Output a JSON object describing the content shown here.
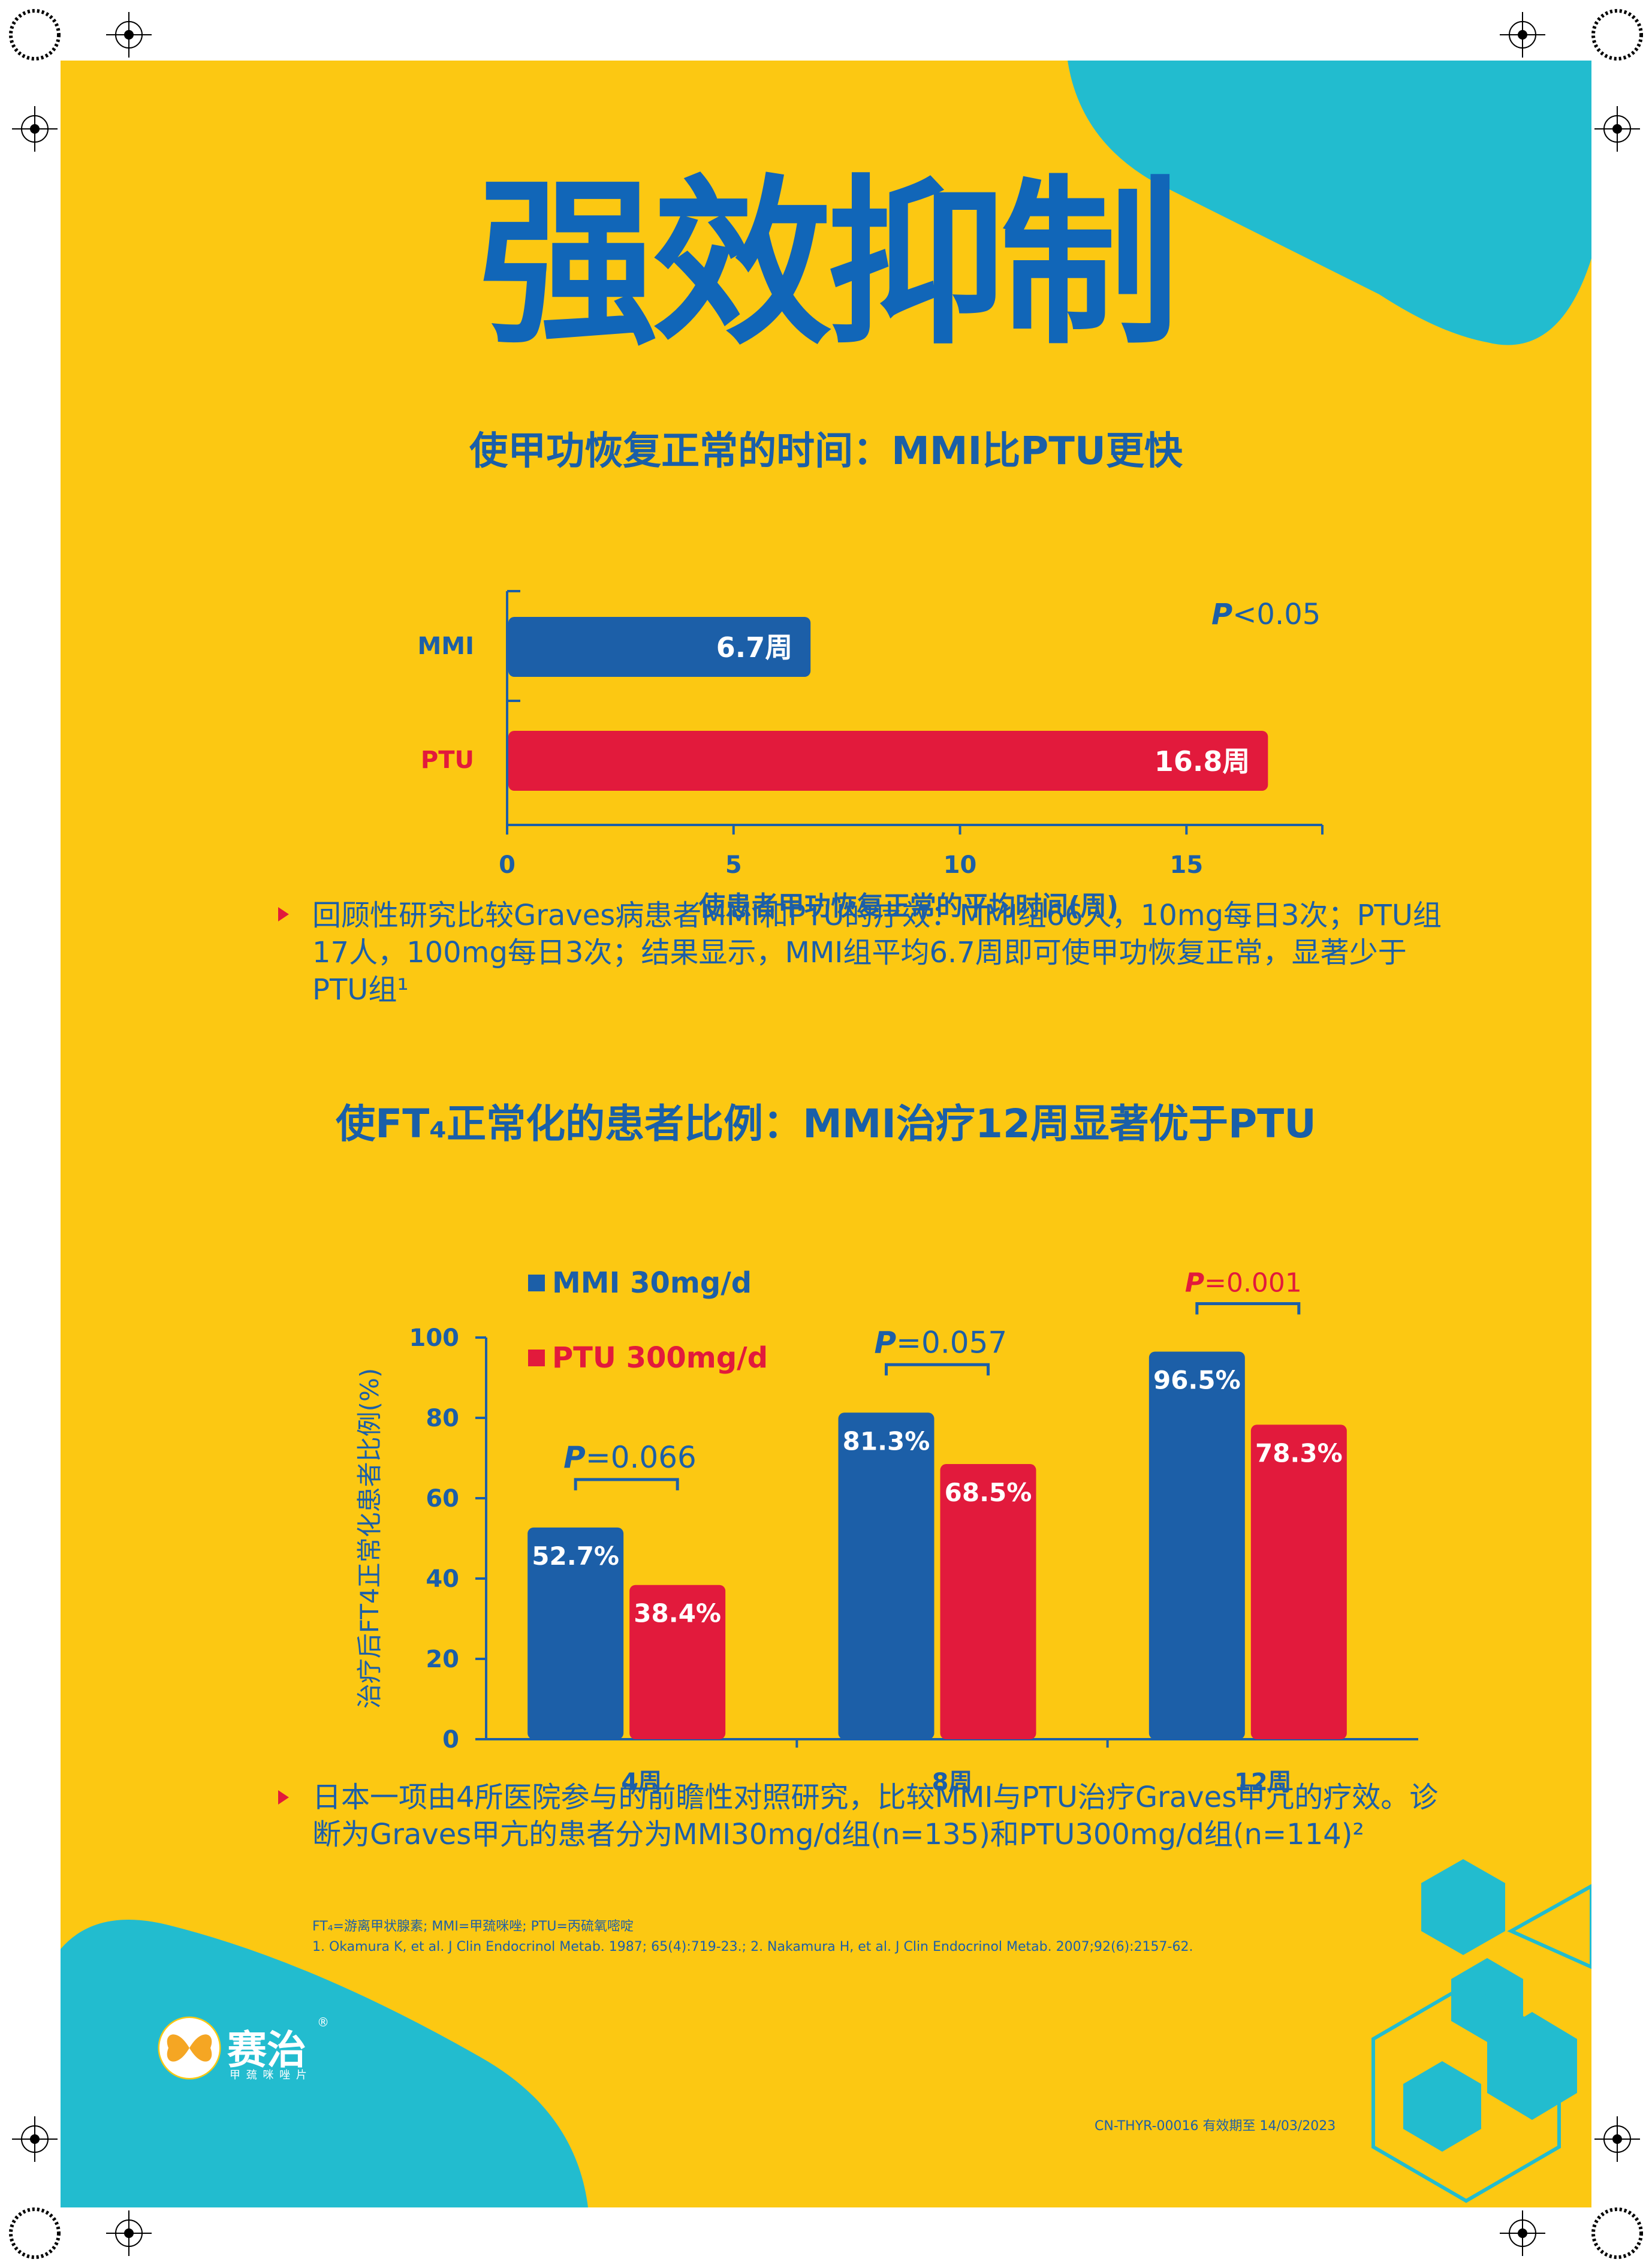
{
  "title": "强效抑制",
  "section1": {
    "heading": "使甲功恢复正常的时间：MMI比PTU更快",
    "p_value_letter": "P",
    "p_value_rest": "<0.05",
    "bullet": "回顾性研究比较Graves病患者MMI和PTU的疗效：MMI组66人，10mg每日3次；PTU组17人，100mg每日3次；结果显示，MMI组平均6.7周即可使甲功恢复正常，显著少于PTU组¹"
  },
  "section2": {
    "heading": "使FT₄正常化的患者比例：MMI治疗12周显著优于PTU",
    "bullet": "日本一项由4所医院参与的前瞻性对照研究，比较MMI与PTU治疗Graves甲亢的疗效。诊断为Graves甲亢的患者分为MMI30mg/d组(n=135)和PTU300mg/d组(n=114)²"
  },
  "footnotes": {
    "abbrev": "FT₄=游离甲状腺素; MMI=甲巯咪唑; PTU=丙硫氧嘧啶",
    "refs": "1. Okamura K, et al. J Clin Endocrinol Metab. 1987; 65(4):719-23.;  2. Nakamura H, et al. J Clin Endocrinol Metab. 2007;92(6):2157-62."
  },
  "brand": {
    "name": "赛治",
    "sub": "甲 巯 咪 唑 片",
    "reg": "®"
  },
  "code": "CN-THYR-00016 有效期至 14/03/2023",
  "colors": {
    "background": "#FCC812",
    "blue": "#1C5FA8",
    "red": "#E21A3C",
    "teal": "#22BCCF"
  },
  "chart_data": [
    {
      "type": "bar",
      "orientation": "horizontal",
      "categories": [
        "MMI",
        "PTU"
      ],
      "values": [
        6.7,
        16.8
      ],
      "value_labels": [
        "6.7周",
        "16.8周"
      ],
      "xlabel": "使患者甲功恢复正常的平均时间(周)",
      "xticks": [
        0,
        5,
        10,
        15
      ],
      "xlim": [
        0,
        18
      ],
      "annotation": "P<0.05",
      "colors": [
        "#1C5FA8",
        "#E21A3C"
      ]
    },
    {
      "type": "bar",
      "categories": [
        "4周",
        "8周",
        "12周"
      ],
      "series": [
        {
          "name": "MMI 30mg/d",
          "values": [
            52.7,
            81.3,
            96.5
          ],
          "labels": [
            "52.7%",
            "81.3%",
            "96.5%"
          ],
          "color": "#1C5FA8"
        },
        {
          "name": "PTU 300mg/d",
          "values": [
            38.4,
            68.5,
            78.3
          ],
          "labels": [
            "38.4%",
            "68.5%",
            "78.3%"
          ],
          "color": "#E21A3C"
        }
      ],
      "ylabel": "治疗后FT4正常化患者比例(%)",
      "yticks": [
        0,
        20,
        40,
        60,
        80,
        100
      ],
      "ylim": [
        0,
        100
      ],
      "p_values": [
        {
          "letter": "P",
          "rest": "=0.066"
        },
        {
          "letter": "P",
          "rest": "=0.057"
        },
        {
          "letter": "P",
          "rest": "=0.001"
        }
      ],
      "legend": "top-left"
    }
  ]
}
